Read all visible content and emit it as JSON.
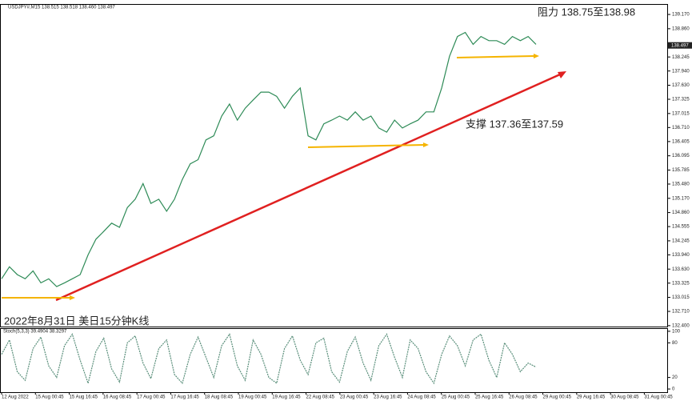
{
  "chart_data": {
    "type": "line",
    "title": "USDJPY#,M15  138.515 138.518 138.460 138.497",
    "annotations": [
      "阻力 138.75至138.98",
      "支撑 137.36至137.59",
      "2022年8月31日 美日15分钟K线"
    ],
    "current_price": 138.497,
    "x_labels": [
      "12 Aug 2022",
      "15 Aug 00:45",
      "15 Aug 16:45",
      "16 Aug 08:45",
      "17 Aug 00:45",
      "17 Aug 16:45",
      "18 Aug 08:45",
      "19 Aug 00:45",
      "19 Aug 16:45",
      "22 Aug 08:45",
      "23 Aug 00:45",
      "23 Aug 16:45",
      "24 Aug 08:45",
      "25 Aug 00:45",
      "25 Aug 16:45",
      "26 Aug 08:45",
      "29 Aug 00:45",
      "29 Aug 16:45",
      "30 Aug 08:45",
      "31 Aug 00:45"
    ],
    "series": [
      {
        "color": "#2e8b57",
        "values": [
          133.42,
          133.68,
          133.51,
          133.42,
          133.59,
          133.33,
          133.42,
          133.25,
          133.33,
          133.42,
          133.51,
          133.94,
          134.28,
          134.45,
          134.63,
          134.54,
          134.97,
          135.15,
          135.49,
          135.06,
          135.15,
          134.89,
          135.15,
          135.58,
          135.92,
          136.01,
          136.44,
          136.53,
          136.96,
          137.22,
          136.87,
          137.13,
          137.31,
          137.48,
          137.48,
          137.39,
          137.13,
          137.39,
          137.57,
          136.53,
          136.44,
          136.79,
          136.87,
          136.96,
          136.87,
          137.05,
          136.87,
          136.96,
          136.7,
          136.61,
          136.87,
          136.7,
          136.79,
          136.87,
          137.05,
          137.05,
          137.57,
          138.26,
          138.69,
          138.78,
          138.52,
          138.69,
          138.6,
          138.6,
          138.52,
          138.69,
          138.6,
          138.69,
          138.52
        ]
      }
    ],
    "ylim": [
      132.38,
      139.38
    ],
    "yticks": [
      {
        "value": 139.17,
        "label": "139.170"
      },
      {
        "value": 138.86,
        "label": "138.860"
      },
      {
        "value": 138.245,
        "label": "138.245"
      },
      {
        "value": 137.94,
        "label": "137.940"
      },
      {
        "value": 137.63,
        "label": "137.630"
      },
      {
        "value": 137.325,
        "label": "137.325"
      },
      {
        "value": 137.015,
        "label": "137.015"
      },
      {
        "value": 136.71,
        "label": "136.710"
      },
      {
        "value": 136.405,
        "label": "136.405"
      },
      {
        "value": 136.095,
        "label": "136.095"
      },
      {
        "value": 135.785,
        "label": "135.785"
      },
      {
        "value": 135.48,
        "label": "135.480"
      },
      {
        "value": 135.17,
        "label": "135.170"
      },
      {
        "value": 134.86,
        "label": "134.860"
      },
      {
        "value": 134.555,
        "label": "134.555"
      },
      {
        "value": 134.245,
        "label": "134.245"
      },
      {
        "value": 133.94,
        "label": "133.940"
      },
      {
        "value": 133.63,
        "label": "133.630"
      },
      {
        "value": 133.325,
        "label": "133.325"
      },
      {
        "value": 133.015,
        "label": "133.015"
      },
      {
        "value": 132.71,
        "label": "132.710"
      },
      {
        "value": 132.4,
        "label": "132.400"
      }
    ],
    "stoch": {
      "title": "Stoch(5,3,3) 39.4904 38.3297",
      "color": "#5a8f7b",
      "values": [
        60,
        85,
        30,
        15,
        70,
        90,
        40,
        20,
        75,
        95,
        50,
        10,
        65,
        88,
        35,
        12,
        80,
        92,
        45,
        18,
        70,
        85,
        25,
        10,
        60,
        90,
        55,
        20,
        75,
        95,
        40,
        15,
        85,
        60,
        20,
        10,
        70,
        92,
        50,
        25,
        80,
        88,
        30,
        12,
        65,
        90,
        45,
        15,
        75,
        95,
        55,
        20,
        85,
        70,
        30,
        10,
        60,
        92,
        75,
        40,
        85,
        95,
        50,
        20,
        80,
        60,
        30,
        45,
        38
      ],
      "ylim": [
        -5.5,
        104
      ],
      "yticks": [
        100,
        80,
        20,
        0
      ]
    }
  }
}
